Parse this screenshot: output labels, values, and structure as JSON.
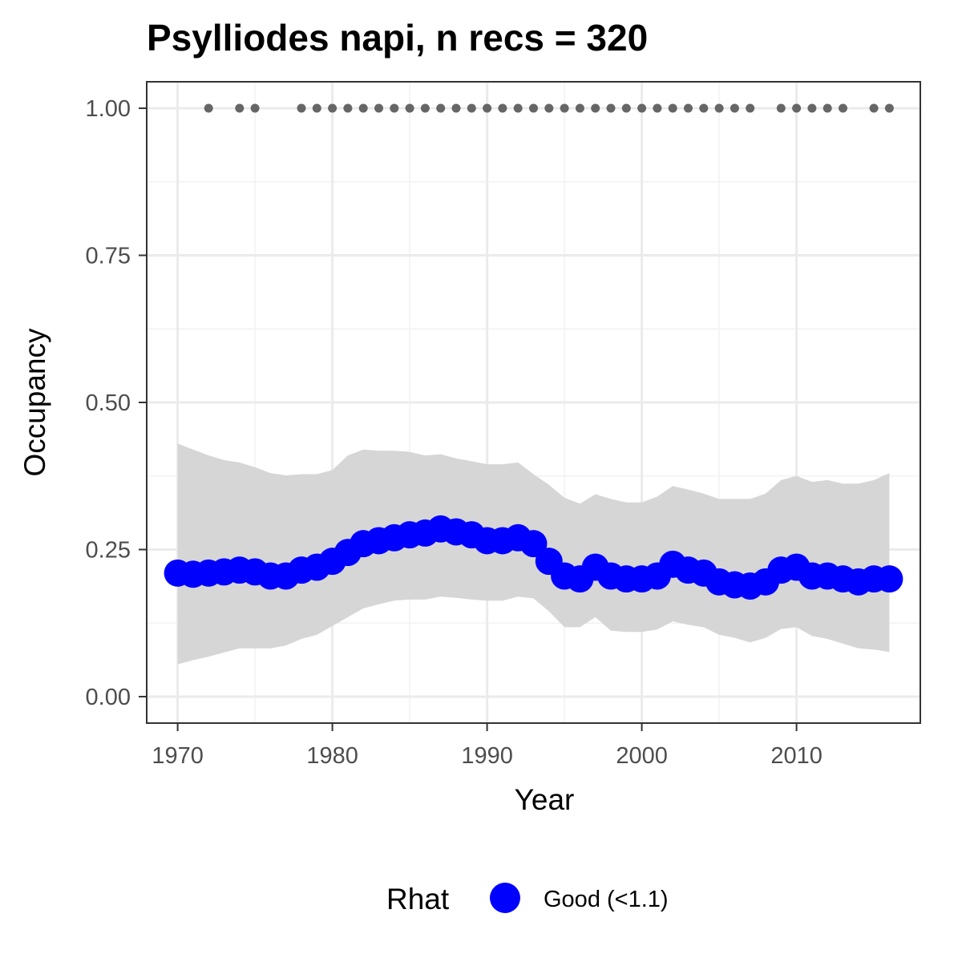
{
  "chart_data": {
    "type": "line",
    "title": "Psylliodes napi, n recs = 320",
    "xlabel": "Year",
    "ylabel": "Occupancy",
    "xlim": [
      1968,
      2018
    ],
    "ylim": [
      -0.045,
      1.045
    ],
    "x_ticks": [
      1970,
      1980,
      1990,
      2000,
      2010
    ],
    "x_tick_labels": [
      "1970",
      "1980",
      "1990",
      "2000",
      "2010"
    ],
    "y_ticks": [
      0,
      0.25,
      0.5,
      0.75,
      1
    ],
    "y_tick_labels": [
      "0.00",
      "0.25",
      "0.50",
      "0.75",
      "1.00"
    ],
    "grid": true,
    "x": [
      1970,
      1971,
      1972,
      1973,
      1974,
      1975,
      1976,
      1977,
      1978,
      1979,
      1980,
      1981,
      1982,
      1983,
      1984,
      1985,
      1986,
      1987,
      1988,
      1989,
      1990,
      1991,
      1992,
      1993,
      1994,
      1995,
      1996,
      1997,
      1998,
      1999,
      2000,
      2001,
      2002,
      2003,
      2004,
      2005,
      2006,
      2007,
      2008,
      2009,
      2010,
      2011,
      2012,
      2013,
      2014,
      2015,
      2016
    ],
    "series": [
      {
        "name": "Good (<1.1)",
        "color": "#0000ff",
        "values": [
          0.21,
          0.208,
          0.21,
          0.212,
          0.215,
          0.212,
          0.205,
          0.205,
          0.215,
          0.22,
          0.23,
          0.245,
          0.26,
          0.265,
          0.27,
          0.275,
          0.278,
          0.285,
          0.28,
          0.275,
          0.265,
          0.265,
          0.27,
          0.26,
          0.23,
          0.205,
          0.2,
          0.22,
          0.205,
          0.2,
          0.2,
          0.205,
          0.225,
          0.215,
          0.21,
          0.195,
          0.19,
          0.188,
          0.195,
          0.215,
          0.22,
          0.205,
          0.205,
          0.2,
          0.195,
          0.2,
          0.2
        ],
        "lower": [
          0.055,
          0.062,
          0.068,
          0.075,
          0.082,
          0.082,
          0.082,
          0.087,
          0.098,
          0.105,
          0.12,
          0.135,
          0.15,
          0.157,
          0.163,
          0.165,
          0.165,
          0.17,
          0.168,
          0.165,
          0.163,
          0.163,
          0.17,
          0.167,
          0.145,
          0.118,
          0.118,
          0.135,
          0.112,
          0.11,
          0.11,
          0.114,
          0.128,
          0.122,
          0.118,
          0.105,
          0.1,
          0.092,
          0.1,
          0.115,
          0.118,
          0.103,
          0.098,
          0.09,
          0.082,
          0.08,
          0.076
        ],
        "upper": [
          0.43,
          0.42,
          0.41,
          0.402,
          0.398,
          0.39,
          0.38,
          0.376,
          0.378,
          0.378,
          0.385,
          0.41,
          0.42,
          0.418,
          0.418,
          0.416,
          0.41,
          0.412,
          0.405,
          0.4,
          0.395,
          0.395,
          0.398,
          0.378,
          0.36,
          0.338,
          0.328,
          0.344,
          0.336,
          0.33,
          0.33,
          0.34,
          0.358,
          0.352,
          0.345,
          0.336,
          0.336,
          0.336,
          0.345,
          0.368,
          0.375,
          0.365,
          0.368,
          0.362,
          0.362,
          0.368,
          0.38
        ]
      }
    ],
    "band_color": "#d6d6d6",
    "records": {
      "color": "#666666",
      "y": 1,
      "x": [
        1972,
        1974,
        1975,
        1978,
        1979,
        1980,
        1981,
        1982,
        1983,
        1984,
        1985,
        1986,
        1987,
        1988,
        1989,
        1990,
        1991,
        1992,
        1993,
        1994,
        1995,
        1996,
        1997,
        1998,
        1999,
        2000,
        2001,
        2002,
        2003,
        2004,
        2005,
        2006,
        2007,
        2009,
        2010,
        2011,
        2012,
        2013,
        2015,
        2016
      ]
    },
    "legend": {
      "title": "Rhat",
      "placement": "bottom",
      "items": [
        {
          "label": "Good (<1.1)",
          "color": "#0000ff"
        }
      ]
    }
  }
}
